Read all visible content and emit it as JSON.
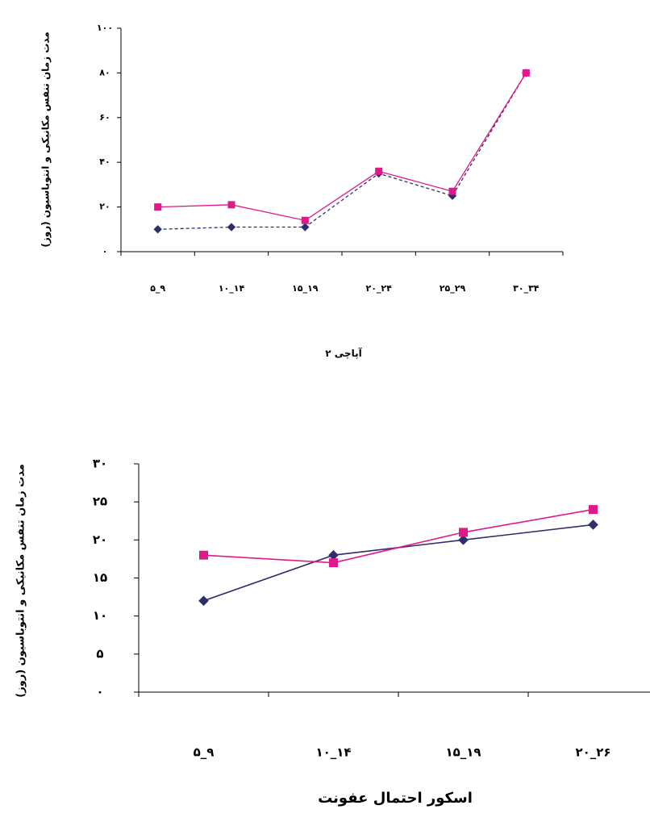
{
  "chart_data": [
    {
      "type": "line",
      "title": "",
      "xlabel": "آپاچی ۲",
      "ylabel": "مدت زمان تنفس مکانیکی و انتوباسیون (روز)",
      "categories": [
        "۵_۹",
        "۱۰_۱۴",
        "۱۵_۱۹",
        "۲۰_۲۴",
        "۲۵_۲۹",
        "۳۰_۳۴"
      ],
      "yticks": [
        "۰",
        "۲۰",
        "۴۰",
        "۶۰",
        "۸۰",
        "۱۰۰"
      ],
      "ylim": [
        0,
        100
      ],
      "grid": false,
      "legend": "none",
      "series": [
        {
          "values": [
            10,
            11,
            11,
            35,
            25,
            80
          ],
          "color": "#2e2e6b",
          "marker": "diamond",
          "line_style": "dashed"
        },
        {
          "values": [
            20,
            21,
            14,
            36,
            27,
            80
          ],
          "color": "#e0198a",
          "marker": "square",
          "line_style": "solid"
        }
      ]
    },
    {
      "type": "line",
      "title": "",
      "xlabel": "اسکور احتمال عفونت",
      "ylabel": "مدت زمان تنفس مکانیکی و انتوباسیون (روز)",
      "categories": [
        "۵_۹",
        "۱۰_۱۴",
        "۱۵_۱۹",
        "۲۰_۲۶"
      ],
      "yticks": [
        "۰",
        "۵",
        "۱۰",
        "۱۵",
        "۲۰",
        "۲۵",
        "۳۰"
      ],
      "ylim": [
        0,
        30
      ],
      "grid": false,
      "legend": "none",
      "series": [
        {
          "values": [
            12,
            18,
            20,
            22
          ],
          "color": "#2e2e6b",
          "marker": "diamond",
          "line_style": "solid"
        },
        {
          "values": [
            18,
            17,
            21,
            24
          ],
          "color": "#e0198a",
          "marker": "square",
          "line_style": "solid"
        }
      ]
    }
  ]
}
